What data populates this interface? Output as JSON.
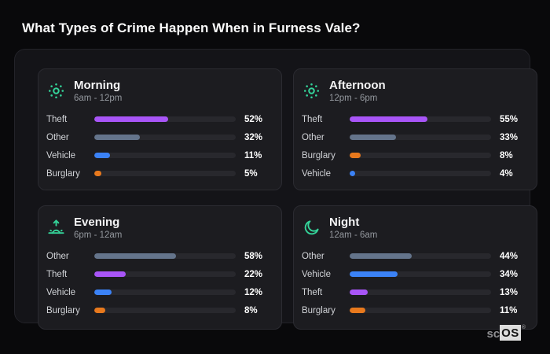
{
  "page": {
    "title": "What Types of Crime Happen When in Furness Vale?"
  },
  "watermark": {
    "prefix": "sc",
    "box": "OS",
    "reg": "®"
  },
  "colors": {
    "page_bg": "#09090b",
    "panel_bg": "#141418",
    "card_bg": "#1c1c20",
    "bar_track": "#28282d",
    "icon_teal": "#34d399",
    "theft_purple": "#a855f7",
    "other_slate": "#64748b",
    "vehicle_blue": "#3b82f6",
    "burglary_orange": "#e8791d"
  },
  "cards": [
    {
      "title": "Morning",
      "time": "6am - 12pm",
      "icon": "sun-icon",
      "rows": [
        {
          "label": "Theft",
          "pct": "52%",
          "value": 52,
          "color": "#a855f7"
        },
        {
          "label": "Other",
          "pct": "32%",
          "value": 32,
          "color": "#64748b"
        },
        {
          "label": "Vehicle",
          "pct": "11%",
          "value": 11,
          "color": "#3b82f6"
        },
        {
          "label": "Burglary",
          "pct": "5%",
          "value": 5,
          "color": "#e8791d"
        }
      ]
    },
    {
      "title": "Afternoon",
      "time": "12pm - 6pm",
      "icon": "sun-icon",
      "rows": [
        {
          "label": "Theft",
          "pct": "55%",
          "value": 55,
          "color": "#a855f7"
        },
        {
          "label": "Other",
          "pct": "33%",
          "value": 33,
          "color": "#64748b"
        },
        {
          "label": "Burglary",
          "pct": "8%",
          "value": 8,
          "color": "#e8791d"
        },
        {
          "label": "Vehicle",
          "pct": "4%",
          "value": 4,
          "color": "#3b82f6"
        }
      ]
    },
    {
      "title": "Evening",
      "time": "6pm - 12am",
      "icon": "sunrise-icon",
      "rows": [
        {
          "label": "Other",
          "pct": "58%",
          "value": 58,
          "color": "#64748b"
        },
        {
          "label": "Theft",
          "pct": "22%",
          "value": 22,
          "color": "#a855f7"
        },
        {
          "label": "Vehicle",
          "pct": "12%",
          "value": 12,
          "color": "#3b82f6"
        },
        {
          "label": "Burglary",
          "pct": "8%",
          "value": 8,
          "color": "#e8791d"
        }
      ]
    },
    {
      "title": "Night",
      "time": "12am - 6am",
      "icon": "moon-icon",
      "rows": [
        {
          "label": "Other",
          "pct": "44%",
          "value": 44,
          "color": "#64748b"
        },
        {
          "label": "Vehicle",
          "pct": "34%",
          "value": 34,
          "color": "#3b82f6"
        },
        {
          "label": "Theft",
          "pct": "13%",
          "value": 13,
          "color": "#a855f7"
        },
        {
          "label": "Burglary",
          "pct": "11%",
          "value": 11,
          "color": "#e8791d"
        }
      ]
    }
  ],
  "chart_data": [
    {
      "type": "bar",
      "title": "Morning",
      "subtitle": "6am - 12pm",
      "orientation": "horizontal",
      "unit": "%",
      "xlim": [
        0,
        100
      ],
      "categories": [
        "Theft",
        "Other",
        "Vehicle",
        "Burglary"
      ],
      "values": [
        52,
        32,
        11,
        5
      ]
    },
    {
      "type": "bar",
      "title": "Afternoon",
      "subtitle": "12pm - 6pm",
      "orientation": "horizontal",
      "unit": "%",
      "xlim": [
        0,
        100
      ],
      "categories": [
        "Theft",
        "Other",
        "Burglary",
        "Vehicle"
      ],
      "values": [
        55,
        33,
        8,
        4
      ]
    },
    {
      "type": "bar",
      "title": "Evening",
      "subtitle": "6pm - 12am",
      "orientation": "horizontal",
      "unit": "%",
      "xlim": [
        0,
        100
      ],
      "categories": [
        "Other",
        "Theft",
        "Vehicle",
        "Burglary"
      ],
      "values": [
        58,
        22,
        12,
        8
      ]
    },
    {
      "type": "bar",
      "title": "Night",
      "subtitle": "12am - 6am",
      "orientation": "horizontal",
      "unit": "%",
      "xlim": [
        0,
        100
      ],
      "categories": [
        "Other",
        "Vehicle",
        "Theft",
        "Burglary"
      ],
      "values": [
        44,
        34,
        13,
        11
      ]
    }
  ]
}
